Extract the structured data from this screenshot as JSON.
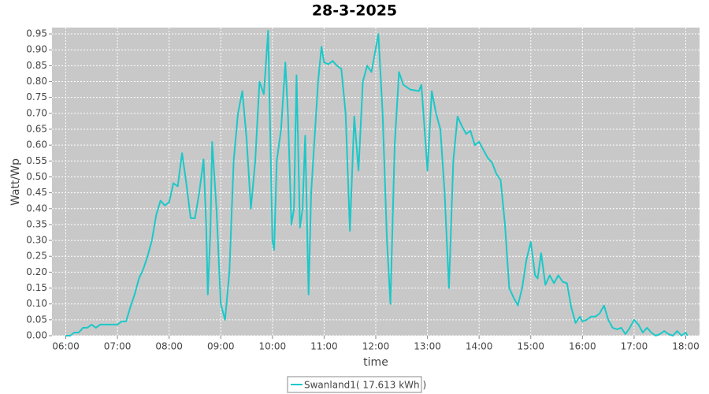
{
  "chart_data": {
    "type": "line",
    "title": "28-3-2025",
    "x_label": "time",
    "y_label": "Watt/Wp",
    "x": [
      "06:00",
      "06:05",
      "06:10",
      "06:15",
      "06:20",
      "06:25",
      "06:30",
      "06:35",
      "06:40",
      "06:50",
      "07:00",
      "07:05",
      "07:10",
      "07:15",
      "07:20",
      "07:25",
      "07:30",
      "07:35",
      "07:40",
      "07:45",
      "07:50",
      "07:55",
      "08:00",
      "08:05",
      "08:10",
      "08:15",
      "08:20",
      "08:25",
      "08:30",
      "08:35",
      "08:40",
      "08:43",
      "08:45",
      "08:48",
      "08:50",
      "08:55",
      "09:00",
      "09:05",
      "09:10",
      "09:15",
      "09:20",
      "09:25",
      "09:30",
      "09:35",
      "09:40",
      "09:45",
      "09:50",
      "09:55",
      "10:00",
      "10:02",
      "10:05",
      "10:10",
      "10:15",
      "10:18",
      "10:22",
      "10:25",
      "10:28",
      "10:32",
      "10:35",
      "10:38",
      "10:42",
      "10:45",
      "10:53",
      "10:57",
      "11:00",
      "11:05",
      "11:10",
      "11:15",
      "11:20",
      "11:25",
      "11:30",
      "11:35",
      "11:40",
      "11:45",
      "11:50",
      "11:55",
      "12:03",
      "12:08",
      "12:13",
      "12:17",
      "12:22",
      "12:27",
      "12:32",
      "12:40",
      "12:50",
      "12:53",
      "12:58",
      "13:00",
      "13:05",
      "13:10",
      "13:15",
      "13:20",
      "13:25",
      "13:30",
      "13:35",
      "13:40",
      "13:45",
      "13:50",
      "13:55",
      "14:00",
      "14:05",
      "14:10",
      "14:15",
      "14:20",
      "14:25",
      "14:30",
      "14:35",
      "14:40",
      "14:45",
      "14:50",
      "14:55",
      "15:00",
      "15:05",
      "15:08",
      "15:12",
      "15:17",
      "15:22",
      "15:27",
      "15:32",
      "15:37",
      "15:42",
      "15:47",
      "15:52",
      "15:57",
      "16:00",
      "16:05",
      "16:10",
      "16:15",
      "16:20",
      "16:25",
      "16:30",
      "16:35",
      "16:40",
      "16:45",
      "16:50",
      "16:55",
      "17:00",
      "17:05",
      "17:10",
      "17:15",
      "17:20",
      "17:25",
      "17:30",
      "17:35",
      "17:40",
      "17:45",
      "17:50",
      "17:55",
      "18:00",
      "18:02"
    ],
    "series": [
      {
        "name": "Swanland1( 17.613 kWh )",
        "color": "#1cc8c8",
        "values": [
          0.0,
          0.0,
          0.01,
          0.01,
          0.025,
          0.025,
          0.035,
          0.025,
          0.035,
          0.035,
          0.035,
          0.045,
          0.045,
          0.09,
          0.13,
          0.18,
          0.21,
          0.25,
          0.3,
          0.38,
          0.425,
          0.41,
          0.42,
          0.48,
          0.47,
          0.575,
          0.48,
          0.37,
          0.37,
          0.45,
          0.555,
          0.35,
          0.13,
          0.33,
          0.61,
          0.4,
          0.1,
          0.05,
          0.2,
          0.55,
          0.7,
          0.77,
          0.62,
          0.4,
          0.55,
          0.8,
          0.76,
          0.96,
          0.3,
          0.27,
          0.55,
          0.65,
          0.86,
          0.7,
          0.35,
          0.4,
          0.82,
          0.34,
          0.4,
          0.63,
          0.13,
          0.45,
          0.8,
          0.91,
          0.86,
          0.855,
          0.865,
          0.85,
          0.84,
          0.7,
          0.33,
          0.69,
          0.52,
          0.8,
          0.85,
          0.83,
          0.95,
          0.7,
          0.3,
          0.1,
          0.6,
          0.83,
          0.79,
          0.775,
          0.77,
          0.79,
          0.6,
          0.52,
          0.77,
          0.7,
          0.65,
          0.45,
          0.15,
          0.55,
          0.69,
          0.66,
          0.635,
          0.645,
          0.6,
          0.61,
          0.585,
          0.56,
          0.545,
          0.51,
          0.49,
          0.35,
          0.15,
          0.12,
          0.095,
          0.15,
          0.24,
          0.295,
          0.19,
          0.18,
          0.26,
          0.16,
          0.19,
          0.165,
          0.19,
          0.17,
          0.165,
          0.09,
          0.04,
          0.06,
          0.045,
          0.05,
          0.06,
          0.06,
          0.07,
          0.095,
          0.05,
          0.025,
          0.02,
          0.025,
          0.005,
          0.025,
          0.05,
          0.035,
          0.01,
          0.025,
          0.01,
          0.0,
          0.005,
          0.015,
          0.005,
          0.0,
          0.015,
          0.0,
          0.01,
          0.0
        ]
      }
    ],
    "xlim": [
      "05:44",
      "18:16"
    ],
    "xticks": [
      "06:00",
      "07:00",
      "08:00",
      "09:00",
      "10:00",
      "11:00",
      "12:00",
      "13:00",
      "14:00",
      "15:00",
      "16:00",
      "17:00",
      "18:00"
    ],
    "ylim": [
      0,
      0.97
    ],
    "yticks": [
      {
        "value": 0,
        "label": "0.00"
      },
      {
        "value": 0.05,
        "label": "0.05"
      },
      {
        "value": 0.1,
        "label": "0.10"
      },
      {
        "value": 0.15,
        "label": "0.15"
      },
      {
        "value": 0.2,
        "label": "0.20"
      },
      {
        "value": 0.25,
        "label": "0.25"
      },
      {
        "value": 0.3,
        "label": "0.30"
      },
      {
        "value": 0.35,
        "label": "0.35"
      },
      {
        "value": 0.4,
        "label": "0.40"
      },
      {
        "value": 0.45,
        "label": "0.45"
      },
      {
        "value": 0.5,
        "label": "0.50"
      },
      {
        "value": 0.55,
        "label": "0.55"
      },
      {
        "value": 0.6,
        "label": "0.60"
      },
      {
        "value": 0.65,
        "label": "0.65"
      },
      {
        "value": 0.7,
        "label": "0.70"
      },
      {
        "value": 0.75,
        "label": "0.75"
      },
      {
        "value": 0.8,
        "label": "0.80"
      },
      {
        "value": 0.85,
        "label": "0.85"
      },
      {
        "value": 0.9,
        "label": "0.90"
      },
      {
        "value": 0.95,
        "label": "0.95"
      }
    ],
    "grid": true,
    "legend": "bottom"
  }
}
